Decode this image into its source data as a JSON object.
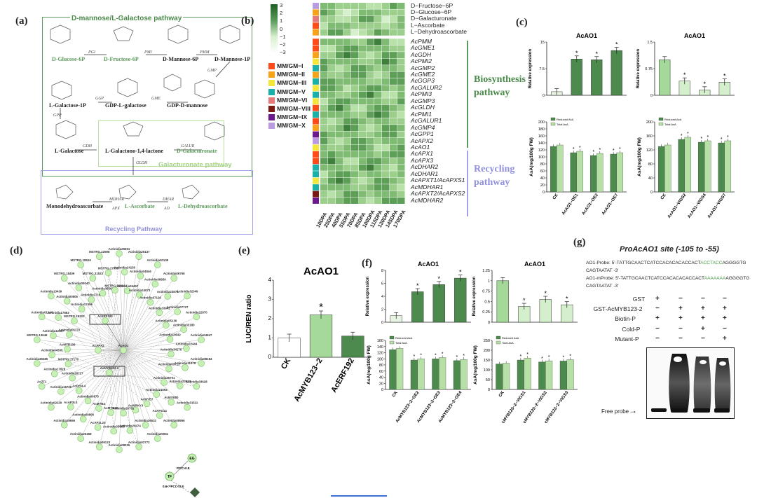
{
  "panels": {
    "a": {
      "label": "(a)",
      "pathway_titles": {
        "dmannose": "D-mannose/L-Galactose pathway",
        "galacturonate": "Galacturonate pathway",
        "recycling": "Recycling Pathway"
      },
      "metabolites": [
        "D-Glucose-6P",
        "D-Fructose-6P",
        "D-Mannose-6P",
        "D-Mannose-1P",
        "GDP-D-mannose",
        "GDP-L-galactose",
        "L-Galactose-1P",
        "L-Galactose",
        "L-Galactono-1,4-lactone",
        "D-Galacturonate",
        "L-Ascorbate",
        "Monodehydroascorbate",
        "L-Dehydroascorbate"
      ],
      "enzymes": [
        "PGI",
        "PMI",
        "PMM",
        "GMP",
        "GME",
        "GGP",
        "GPP",
        "GDH",
        "GALUR",
        "GLDH",
        "MDHAR",
        "APX",
        "DHAR",
        "AO"
      ]
    },
    "b": {
      "label": "(b)",
      "colorbar_ticks": [
        "3",
        "2",
        "1",
        "0",
        "−1",
        "−2",
        "−3"
      ],
      "legend": [
        {
          "name": "MM/GM−I",
          "color": "#ff4a1a"
        },
        {
          "name": "MM/GM−II",
          "color": "#f7a31a"
        },
        {
          "name": "MM/GM−III",
          "color": "#f5e63b"
        },
        {
          "name": "MM/GM−V",
          "color": "#18b0a8"
        },
        {
          "name": "MM/GM−VI",
          "color": "#e47a7a"
        },
        {
          "name": "MM/GM−VIII",
          "color": "#7b1a10"
        },
        {
          "name": "MM/GM−IX",
          "color": "#6a1a8a"
        },
        {
          "name": "MM/GM−X",
          "color": "#b89be0"
        }
      ],
      "metabolite_rows": [
        "D−Fructose−6P",
        "D−Glucose−6P",
        "D−Galacturonate",
        "L−Ascorbate",
        "L−Dehydroascorbate"
      ],
      "gene_rows": [
        "AcPMM",
        "AcGME1",
        "AcGDH",
        "AcPMI2",
        "AcGMP2",
        "AcGME2",
        "AcGGP3",
        "AcGALUR2",
        "AcPMI3",
        "AcGMP3",
        "AcGLDH",
        "AcPMI1",
        "AcGALUR1",
        "AcGMP4",
        "AcGPP1",
        "AcAPX2",
        "AcAO1",
        "AcAPX1",
        "AcAPX3",
        "AcDHAR2",
        "AcDHAR1",
        "AcAPXT1/AcAPXS1",
        "AcMDHAR1",
        "AcAPXT2/AcAPXS2",
        "AcMDHAR2"
      ],
      "columns": [
        "10DPA",
        "25DPA",
        "40DPA",
        "55DPA",
        "70DPA",
        "85DPA",
        "100DPA",
        "115DPA",
        "130DPA",
        "145DPA",
        "170DPA"
      ],
      "group_labels": {
        "biosynthesis": "Biosynthesis pathway",
        "recycling": "Recycling pathway"
      }
    },
    "c": {
      "label": "(c)",
      "charts": "see chart_data"
    },
    "d": {
      "label": "(d)",
      "nodes": [
        "Actinidia25651",
        "Actinidia24150",
        "Actinidia26457",
        "Actinidia25137",
        "Actinidia04846",
        "Actinidia24073",
        "Actinidia30109",
        "Actinidia08659",
        "Actinidia07126",
        "Actinidia06756",
        "Actinidia23871",
        "Actinidia33942",
        "Actinidia32349",
        "Actinidia07727",
        "Actinidia05136",
        "Actinidia22870",
        "Actinidia33180",
        "Actinidia10642",
        "Actinidia04947",
        "Actinidia22444",
        "Actinidia34276",
        "Actinidia08184",
        "Actinidia11978",
        "Actinidia03713",
        "Actinidia03628",
        "Actinidia22623",
        "Actinidia35701",
        "Actinidia31511",
        "AcERF192",
        "AcMYB80",
        "Actinidia21593",
        "Actinidia08956",
        "AcAP2/14",
        "AcMYB7",
        "Actinidia30651",
        "Actinidia36532",
        "AcWRKY3",
        "Actinidia02772",
        "Actinidia20474",
        "Actinidia26781",
        "AcAPX2",
        "AcAO1",
        "Actinidia08035",
        "Actinidia35998",
        "AcMYB62",
        "Actinidia09123",
        "AcMYB123-2",
        "AcAP2L20",
        "AcMYB4",
        "Actinidia20458",
        "Actinidia09806",
        "Actinidia00875",
        "Actinidia19656",
        "AcAP2L4",
        "AcDof4.4",
        "Actinidia02120",
        "Actinidia16726",
        "Actinidia28727",
        "AcZF1",
        "Actinidia17828",
        "MSTRG.17170",
        "Actinidia36485",
        "Actinidia04335",
        "AcMYB136",
        "MSTRG.13646",
        "Actinidia12187",
        "Actinidia01170",
        "Actinidia01144",
        "Actinidia17883",
        "MSTRG.16322",
        "Actinidia13439",
        "Actinidia00805",
        "Actinidia17456",
        "MSTRG.18409",
        "Actinidia00040",
        "Actinidia17181",
        "MSTRG.18516",
        "MSTRG.31923",
        "Actinidia36561",
        "MSTRG.22598",
        "MSTRG.27958",
        "MSTRG.39994"
      ],
      "legend": [
        "EG",
        "TF",
        "PCC>0.8",
        "0.6<=PCC<0.8"
      ]
    },
    "e": {
      "label": "(e)",
      "title": "AcAO1"
    },
    "f": {
      "label": "(f)"
    },
    "g": {
      "label": "(g)",
      "title": "ProAcAO1 site (-105 to -55)",
      "probe_line1_prefix": "AO1-Probe: 5'-TATTGCAACTCATCCACACACACCACT",
      "probe_line1_highlight": "ACCTACC",
      "probe_line1_suffix": "AGGGGTG",
      "probe_line1_end": "CAGTAATAT -3'",
      "probe_line2_prefix": "AO1-mProbe: 5'-TATTGCAACTCATCCACACACACCACT",
      "probe_line2_highlight": "AAAAAAA",
      "probe_line2_suffix": "AGGGGTG",
      "probe_line2_end": "CAGTAATAT -3'",
      "rows": [
        {
          "name": "GST",
          "signs": [
            "+",
            "−",
            "−",
            "−"
          ]
        },
        {
          "name": "GST-AcMYB123-2",
          "signs": [
            "−",
            "+",
            "+",
            "+"
          ]
        },
        {
          "name": "Biotin-P",
          "signs": [
            "+",
            "+",
            "+",
            "+"
          ]
        },
        {
          "name": "Cold-P",
          "signs": [
            "−",
            "−",
            "+",
            "−"
          ]
        },
        {
          "name": "Mutant-P",
          "signs": [
            "−",
            "−",
            "−",
            "+"
          ]
        }
      ],
      "free_probe": "Free probe"
    }
  },
  "chart_data": [
    {
      "panel": "c",
      "type": "bar",
      "title": "AcAO1",
      "ylabel": "Relative expression",
      "ylim": [
        0,
        15
      ],
      "categories": [
        "",
        "",
        "",
        ""
      ],
      "values": [
        1.0,
        10.2,
        10.0,
        12.6
      ],
      "colors": [
        "#e8f5e3",
        "#4d8a4d",
        "#4d8a4d",
        "#4d8a4d"
      ],
      "significant": [
        false,
        true,
        true,
        true
      ]
    },
    {
      "panel": "c",
      "type": "bar",
      "title": "AcAO1",
      "ylabel": "Relative expression",
      "ylim": [
        0,
        1.5
      ],
      "categories": [
        "",
        "",
        "",
        ""
      ],
      "values": [
        1.0,
        0.4,
        0.15,
        0.37
      ],
      "colors": [
        "#a5d99a",
        "#d4efcc",
        "#d4efcc",
        "#d4efcc"
      ],
      "significant": [
        false,
        true,
        true,
        true
      ]
    },
    {
      "panel": "c",
      "type": "bar",
      "ylabel": "AsA(mg/100g FW)",
      "ylim": [
        0,
        200
      ],
      "yticks": [
        0,
        20,
        40,
        60,
        80,
        100,
        120,
        140,
        160,
        180,
        200
      ],
      "categories": [
        "CK",
        "AcAO1−OE1",
        "AcAO1−OE2",
        "AcAO1−OE7"
      ],
      "series": [
        {
          "name": "Reduced AsA",
          "values": [
            130,
            112,
            104,
            108
          ]
        },
        {
          "name": "Total AsA",
          "values": [
            134,
            116,
            110,
            112
          ]
        }
      ]
    },
    {
      "panel": "c",
      "type": "bar",
      "ylabel": "AsA(mg/100g FW)",
      "ylim": [
        0,
        200
      ],
      "yticks": [
        0,
        40,
        80,
        120,
        160,
        200
      ],
      "categories": [
        "CK",
        "AcAO1−VIGS2",
        "AcAO1−VIGS4",
        "AcAO1−VIGS7"
      ],
      "series": [
        {
          "name": "Reduced AsA",
          "values": [
            130,
            150,
            142,
            140
          ]
        },
        {
          "name": "Total AsA",
          "values": [
            134,
            156,
            146,
            146
          ]
        }
      ]
    },
    {
      "panel": "e",
      "type": "bar",
      "title": "AcAO1",
      "ylabel": "LUC/REN ratio",
      "ylim": [
        0,
        4
      ],
      "yticks": [
        0,
        1,
        2,
        3,
        4
      ],
      "categories": [
        "CK",
        "AcMYB123−2",
        "AcERF192"
      ],
      "values": [
        1.0,
        2.2,
        1.1
      ],
      "colors": [
        "#ffffff",
        "#a5d99a",
        "#4d8a4d"
      ],
      "significant": [
        false,
        true,
        false
      ]
    },
    {
      "panel": "f",
      "type": "bar",
      "title": "AcAO1",
      "ylabel": "Relative expression",
      "ylim": [
        0,
        8
      ],
      "yticks": [
        0,
        2,
        4,
        6,
        8
      ],
      "categories": [
        "",
        "",
        "",
        ""
      ],
      "values": [
        1.0,
        4.7,
        5.8,
        6.8
      ],
      "colors": [
        "#e8f5e3",
        "#4d8a4d",
        "#4d8a4d",
        "#4d8a4d"
      ],
      "significant": [
        false,
        true,
        true,
        true
      ]
    },
    {
      "panel": "f",
      "type": "bar",
      "title": "AcAO1",
      "ylabel": "Relative expression",
      "ylim": [
        0,
        1.25
      ],
      "yticks": [
        0,
        0.25,
        0.5,
        0.75,
        1.0,
        1.25
      ],
      "categories": [
        "",
        "",
        "",
        ""
      ],
      "values": [
        1.0,
        0.38,
        0.55,
        0.42
      ],
      "colors": [
        "#a5d99a",
        "#d4efcc",
        "#d4efcc",
        "#d4efcc"
      ],
      "significant": [
        false,
        true,
        true,
        true
      ]
    },
    {
      "panel": "f",
      "type": "bar",
      "ylabel": "AsA(mg/100g FW)",
      "ylim": [
        0,
        160
      ],
      "yticks": [
        0,
        20,
        40,
        60,
        80,
        100,
        120,
        140,
        160
      ],
      "categories": [
        "CK",
        "AcMYB123−2−OE2",
        "AcMYB123−2−OE3",
        "AcMYB123−2−OE4"
      ],
      "series": [
        {
          "name": "Reduced AsA",
          "values": [
            130,
            96,
            100,
            94
          ]
        },
        {
          "name": "Total AsA",
          "values": [
            134,
            100,
            104,
            98
          ]
        }
      ]
    },
    {
      "panel": "f",
      "type": "bar",
      "ylabel": "AsA(mg/100g FW)",
      "ylim": [
        0,
        250
      ],
      "yticks": [
        0,
        50,
        100,
        150,
        200,
        250
      ],
      "categories": [
        "CK",
        "AcMYB123−2−VIGS1",
        "AcMYB123−2−VIGS2",
        "AcMYB123−2−VIGS3"
      ],
      "series": [
        {
          "name": "Reduced AsA",
          "values": [
            130,
            150,
            140,
            145
          ]
        },
        {
          "name": "Total AsA",
          "values": [
            134,
            160,
            146,
            152
          ]
        }
      ]
    }
  ]
}
